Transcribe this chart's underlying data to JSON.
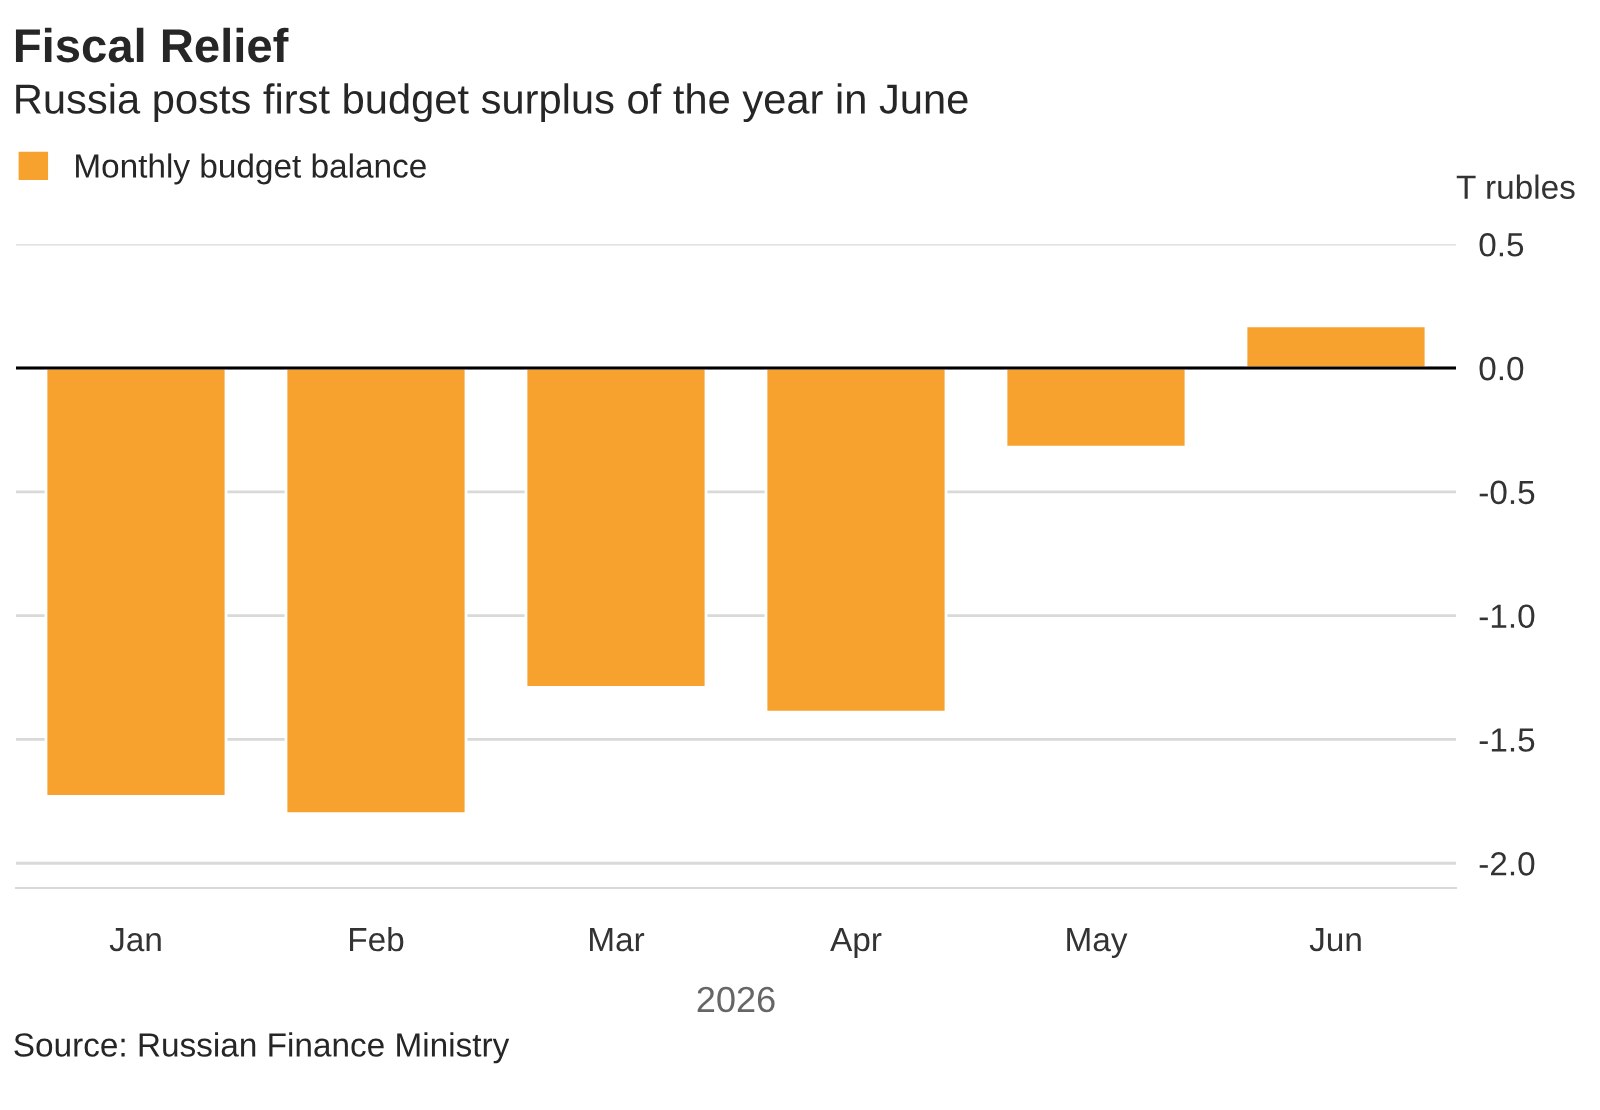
{
  "chart_data": {
    "type": "bar",
    "title": "Fiscal Relief",
    "subtitle": "Russia posts first budget surplus of the year in June",
    "xlabel": "2026",
    "ylabel": "T rubles",
    "categories": [
      "Jan",
      "Feb",
      "Mar",
      "Apr",
      "May",
      "Jun"
    ],
    "series": [
      {
        "name": "Monthly budget balance",
        "color": "#f7a22e",
        "values": [
          -1.73,
          -1.8,
          -1.29,
          -1.39,
          -0.32,
          0.17
        ]
      }
    ],
    "ylim": [
      -2.1,
      0.5
    ],
    "yticks": [
      {
        "value": 0.5,
        "label": "0.5"
      },
      {
        "value": 0,
        "label": "0.0"
      },
      {
        "value": -0.5,
        "label": "-0.5"
      },
      {
        "value": -1,
        "label": "-1.0"
      },
      {
        "value": -1.5,
        "label": "-1.5"
      },
      {
        "value": -2,
        "label": "-2.0"
      }
    ],
    "grid": "y",
    "legend": "top left",
    "annotations": [
      "Source: Russian Finance Ministry"
    ]
  }
}
